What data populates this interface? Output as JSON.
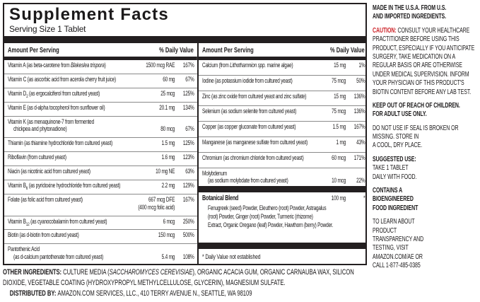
{
  "panel": {
    "title": "Supplement Facts",
    "serving_size": "Serving Size 1 Tablet",
    "column_header_amount": "Amount Per Serving",
    "column_header_dv": "% Daily Value",
    "left_rows": [
      {
        "name_lines": [
          [
            {
              "t": "Vitamin A (as beta-carotene from "
            },
            {
              "t": "Blakeslea trispora",
              "i": true
            },
            {
              "t": ")"
            }
          ]
        ],
        "amount_lines": [
          "1500 mcg RAE"
        ],
        "dv": "167%"
      },
      {
        "name_lines": [
          [
            {
              "t": "Vitamin C (as ascorbic acid from acerola cherry fruit juice)"
            }
          ]
        ],
        "amount_lines": [
          "60 mg"
        ],
        "dv": "67%"
      },
      {
        "name_lines": [
          [
            {
              "t": "Vitamin D"
            },
            {
              "t": "2",
              "sub": true
            },
            {
              "t": " (as ergocalciferol from cultured yeast)"
            }
          ]
        ],
        "amount_lines": [
          "25 mcg"
        ],
        "dv": "125%"
      },
      {
        "name_lines": [
          [
            {
              "t": "Vitamin E (as d-alpha tocopherol from sunflower oil)"
            }
          ]
        ],
        "amount_lines": [
          "20.1 mg"
        ],
        "dv": "134%"
      },
      {
        "name_lines": [
          [
            {
              "t": "Vitamin K (as menaquinone-7 from fermented"
            }
          ],
          [
            {
              "t": "chickpea and phytonadione)"
            }
          ]
        ],
        "amount_lines": [
          "80 mcg"
        ],
        "dv": "67%"
      },
      {
        "name_lines": [
          [
            {
              "t": "Thiamin (as thiamine hydrochloride from cultured yeast)"
            }
          ]
        ],
        "amount_lines": [
          "1.5 mg"
        ],
        "dv": "125%"
      },
      {
        "name_lines": [
          [
            {
              "t": "Riboflavin (from cultured yeast)"
            }
          ]
        ],
        "amount_lines": [
          "1.6 mg"
        ],
        "dv": "123%"
      },
      {
        "name_lines": [
          [
            {
              "t": "Niacin (as nicotinic acid from cultured yeast)"
            }
          ]
        ],
        "amount_lines": [
          "10 mg NE"
        ],
        "dv": "63%"
      },
      {
        "name_lines": [
          [
            {
              "t": "Vitamin B"
            },
            {
              "t": "6",
              "sub": true
            },
            {
              "t": " (as pyridoxine hydrochloride from cultured yeast)"
            }
          ]
        ],
        "amount_lines": [
          "2.2 mg"
        ],
        "dv": "129%"
      },
      {
        "name_lines": [
          [
            {
              "t": "Folate (as folic acid from cultured yeast)"
            }
          ]
        ],
        "amount_lines": [
          "667 mcg DFE",
          "(400 mcg folic acid)"
        ],
        "dv": "167%",
        "align": "top"
      },
      {
        "name_lines": [
          [
            {
              "t": "Vitamin B"
            },
            {
              "t": "12",
              "sub": true
            },
            {
              "t": " (as cyanocobalamin from cultured yeast)"
            }
          ]
        ],
        "amount_lines": [
          "6 mcg"
        ],
        "dv": "250%"
      },
      {
        "name_lines": [
          [
            {
              "t": "Biotin (as d-biotin from cultured yeast)"
            }
          ]
        ],
        "amount_lines": [
          "150 mcg"
        ],
        "dv": "500%"
      },
      {
        "name_lines": [
          [
            {
              "t": "Pantothenic Acid"
            }
          ],
          [
            {
              "t": "(as d-calcium pantothenate from cultured yeast)"
            }
          ]
        ],
        "amount_lines": [
          "5.4 mg"
        ],
        "dv": "108%"
      }
    ],
    "right_rows": [
      {
        "name_lines": [
          [
            {
              "t": "Calcium (from "
            },
            {
              "t": "Lithothamnion spp.",
              "i": true
            },
            {
              "t": " marine algae)"
            }
          ]
        ],
        "amount_lines": [
          "15 mg"
        ],
        "dv": "1%"
      },
      {
        "name_lines": [
          [
            {
              "t": "Iodine (as potassium iodide from cultured yeast)"
            }
          ]
        ],
        "amount_lines": [
          "75 mcg"
        ],
        "dv": "50%"
      },
      {
        "name_lines": [
          [
            {
              "t": "Zinc (as zinc oxide from cultured yeast and zinc sulfate)"
            }
          ]
        ],
        "amount_lines": [
          "15 mg"
        ],
        "dv": "136%"
      },
      {
        "name_lines": [
          [
            {
              "t": "Selenium (as sodium selenite from cultured yeast)"
            }
          ]
        ],
        "amount_lines": [
          "75 mcg"
        ],
        "dv": "136%"
      },
      {
        "name_lines": [
          [
            {
              "t": "Copper (as copper gluconate from cultured yeast)"
            }
          ]
        ],
        "amount_lines": [
          "1.5 mg"
        ],
        "dv": "167%"
      },
      {
        "name_lines": [
          [
            {
              "t": "Manganese (as manganese sulfate from cultured yeast)"
            }
          ]
        ],
        "amount_lines": [
          "1 mg"
        ],
        "dv": "43%"
      },
      {
        "name_lines": [
          [
            {
              "t": "Chromium (as chromium chloride from cultured yeast)"
            }
          ]
        ],
        "amount_lines": [
          "60 mcg"
        ],
        "dv": "171%"
      },
      {
        "name_lines": [
          [
            {
              "t": "Molybdenum"
            }
          ],
          [
            {
              "t": "(as sodium molybdate from cultured yeast)"
            }
          ]
        ],
        "amount_lines": [
          "10 mcg"
        ],
        "dv": "22%"
      }
    ],
    "botanical": {
      "name": "Botanical Blend",
      "amount": "100 mg",
      "dv": "*",
      "description": "Fenugreek (seed) Powder, Eleuthero (root) Powder, Astragalus\n(root) Powder, Ginger (root) Powder, Turmeric (rhizome)\nExtract, Organic Oregano (leaf) Powder, Hawthorn (berry) Powder."
    },
    "footnote": "* Daily Value not established"
  },
  "sidebar": {
    "made_in": "MADE IN THE U.S.A. FROM U.S.\nAND IMPORTED INGREDIENTS.",
    "caution_label": "CAUTION:",
    "caution_text": " CONSULT YOUR HEALTHCARE\nPRACTITIONER BEFORE USING THIS\nPRODUCT, ESPECIALLY IF YOU ANTICIPATE\nSURGERY, TAKE MEDICATION ON A\nREGULAR BASIS OR ARE OTHERWISE\nUNDER MEDICAL SUPERVISION. INFORM\nYOUR PHYSICIAN OF THIS PRODUCT'S\nBIOTIN CONTENT BEFORE ANY LAB TEST.",
    "keep_out": "KEEP OUT OF REACH OF CHILDREN.\nFOR ADULT USE ONLY.",
    "do_not_use": "DO NOT USE IF SEAL IS BROKEN OR\nMISSING. STORE IN\nA COOL, DRY PLACE.",
    "suggested_use_label": "SUGGESTED USE:",
    "suggested_use_text": "TAKE 1 TABLET\nDAILY WITH FOOD.",
    "contains": "CONTAINS A\nBIOENGINEERED\nFOOD INGREDIENT",
    "learn": "TO LEARN ABOUT\nPRODUCT\nTRANSPARENCY AND\nTESTING, VISIT\nAMAZON.COM/AE OR\nCALL 1-877-485-0385"
  },
  "footer": {
    "other_label": "OTHER INGREDIENTS: ",
    "other_pre": "CULTURE MEDIA (",
    "other_italic": "SACCHAROMYCES CEREVISIAE",
    "other_post": "), ORGANIC ACACIA GUM, ORGANIC CARNAUBA WAX, SILICON\nDIOXIDE, VEGETABLE COATING (HYDROXYPROPYL METHYLCELLULOSE, GLYCERIN), MAGNESIUM SULFATE.",
    "dist_label": "DISTRIBUTED BY: ",
    "dist_text": "AMAZON.COM SERVICES, LLC., 410 TERRY AVENUE N., SEATTLE, WA 98109"
  },
  "colors": {
    "caution_red": "#cc2127",
    "bar_black": "#231f20"
  }
}
